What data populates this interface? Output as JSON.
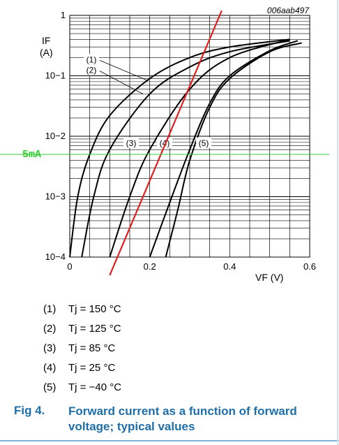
{
  "chart_data": {
    "type": "line",
    "figure_code": "006aab497",
    "xlabel": "VF (V)",
    "ylabel": "IF",
    "ylabel_unit": "(A)",
    "xlim": [
      0,
      0.6
    ],
    "ylim": [
      0.0001,
      1
    ],
    "y_scale": "log",
    "grid": true,
    "x_ticks": [
      "0",
      "0.2",
      "0.4",
      "0.6"
    ],
    "x_tick_values": [
      0,
      0.2,
      0.4,
      0.6
    ],
    "y_ticks": [
      "10−4",
      "10−3",
      "10−2",
      "10−1",
      "1"
    ],
    "y_tick_values": [
      0.0001,
      0.001,
      0.01,
      0.1,
      1
    ],
    "series": [
      {
        "name": "(1)",
        "points": [
          [
            0.0,
            0.0001
          ],
          [
            0.02,
            0.001
          ],
          [
            0.05,
            0.005
          ],
          [
            0.1,
            0.022
          ],
          [
            0.2,
            0.09
          ],
          [
            0.3,
            0.2
          ],
          [
            0.4,
            0.3
          ],
          [
            0.55,
            0.4
          ]
        ]
      },
      {
        "name": "(2)",
        "points": [
          [
            0.03,
            0.0001
          ],
          [
            0.06,
            0.001
          ],
          [
            0.1,
            0.006
          ],
          [
            0.2,
            0.05
          ],
          [
            0.3,
            0.14
          ],
          [
            0.4,
            0.25
          ],
          [
            0.55,
            0.38
          ]
        ]
      },
      {
        "name": "(3)",
        "points": [
          [
            0.1,
            0.0001
          ],
          [
            0.15,
            0.001
          ],
          [
            0.2,
            0.006
          ],
          [
            0.3,
            0.06
          ],
          [
            0.4,
            0.2
          ],
          [
            0.55,
            0.4
          ]
        ]
      },
      {
        "name": "(4)",
        "points": [
          [
            0.2,
            0.0001
          ],
          [
            0.25,
            0.0008
          ],
          [
            0.3,
            0.006
          ],
          [
            0.35,
            0.035
          ],
          [
            0.4,
            0.1
          ],
          [
            0.5,
            0.26
          ],
          [
            0.57,
            0.38
          ]
        ]
      },
      {
        "name": "(5)",
        "points": [
          [
            0.24,
            0.0001
          ],
          [
            0.27,
            0.0006
          ],
          [
            0.3,
            0.004
          ],
          [
            0.35,
            0.03
          ],
          [
            0.4,
            0.09
          ],
          [
            0.5,
            0.25
          ],
          [
            0.58,
            0.35
          ]
        ]
      }
    ],
    "curve_labels": [
      {
        "text": "(1)",
        "y": 0.18
      },
      {
        "text": "(2)",
        "y": 0.12
      },
      {
        "text": "(3)",
        "y": 0.0075
      },
      {
        "text": "(4)",
        "y": 0.0075
      },
      {
        "text": "(5)",
        "y": 0.0075
      }
    ],
    "overlay_line": {
      "color": "#e02020",
      "points": [
        [
          0.1,
          5e-05
        ],
        [
          0.38,
          1.2
        ]
      ]
    },
    "reference_line": {
      "label": "5mA",
      "y": 0.005,
      "color": "#33cc33"
    }
  },
  "legend": [
    {
      "num": "(1)",
      "text": "Tj = 150 °C"
    },
    {
      "num": "(2)",
      "text": "Tj = 125 °C"
    },
    {
      "num": "(3)",
      "text": "Tj = 85 °C"
    },
    {
      "num": "(4)",
      "text": "Tj = 25 °C"
    },
    {
      "num": "(5)",
      "text": "Tj = −40 °C"
    }
  ],
  "caption": {
    "label": "Fig 4.",
    "text": "Forward current as a function of forward voltage; typical values"
  }
}
